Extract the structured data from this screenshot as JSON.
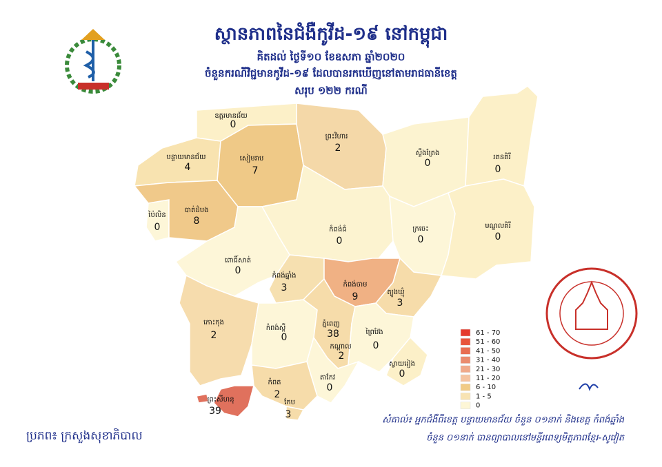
{
  "header": {
    "title": "ស្ថានភាពនៃជំងឺកូវីដ-១៩ នៅកម្ពុជា",
    "date": "គិតដល់ ថ្ងៃទី១០ ខែឧសភា ឆ្នាំ២០២០",
    "subtitle": "ចំនួនករណីវិជ្ជមានកូវីដ-១៩ ដែលបានរកឃើញនៅតាមរាជធានីខេត្ត",
    "total": "សរុប ១២២ ករណី"
  },
  "provinces": [
    {
      "name": "ឧត្តរមានជ័យ",
      "value": 0,
      "color": "#fcf0c8"
    },
    {
      "name": "បន្ទាយមានជ័យ",
      "value": 4,
      "color": "#f8e3b0"
    },
    {
      "name": "សៀមរាប",
      "value": 7,
      "color": "#efc987"
    },
    {
      "name": "ព្រះវិហារ",
      "value": 2,
      "color": "#f4d8a8"
    },
    {
      "name": "ស្ទឹងត្រែង",
      "value": 0,
      "color": "#fcf3d0"
    },
    {
      "name": "រតនគិរី",
      "value": 0,
      "color": "#fcf0c8"
    },
    {
      "name": "ប៉ៃលិន",
      "value": 0,
      "color": "#fdf6d8"
    },
    {
      "name": "បាត់ដំបង",
      "value": 8,
      "color": "#f0c98a"
    },
    {
      "name": "កំពង់ធំ",
      "value": 0,
      "color": "#fcf3d0"
    },
    {
      "name": "ក្រចេះ",
      "value": 0,
      "color": "#fdf6d8"
    },
    {
      "name": "មណ្ឌលគិរី",
      "value": 0,
      "color": "#fcf0c8"
    },
    {
      "name": "ពោធិ៍សាត់",
      "value": 0,
      "color": "#fdf6d8"
    },
    {
      "name": "កំពង់ឆ្នាំង",
      "value": 3,
      "color": "#f6e0b0"
    },
    {
      "name": "កំពង់ចាម",
      "value": 9,
      "color": "#f0b184"
    },
    {
      "name": "ត្បូងឃ្មុំ",
      "value": 3,
      "color": "#f6dcaa"
    },
    {
      "name": "កោះកុង",
      "value": 2,
      "color": "#f6dcad"
    },
    {
      "name": "កំពង់ស្ពឺ",
      "value": 0,
      "color": "#fdf6d8"
    },
    {
      "name": "ភ្នំពេញ",
      "value": 38,
      "color": "#e2725e"
    },
    {
      "name": "កណ្ដាល",
      "value": 2,
      "color": "#f6dcaa"
    },
    {
      "name": "ព្រៃវែង",
      "value": 0,
      "color": "#fdf6d8"
    },
    {
      "name": "ស្វាយរៀង",
      "value": 0,
      "color": "#fcf0c8"
    },
    {
      "name": "តាកែវ",
      "value": 0,
      "color": "#fdf6d8"
    },
    {
      "name": "កំពត",
      "value": 2,
      "color": "#f6dcaa"
    },
    {
      "name": "ព្រះសីហនុ",
      "value": 39,
      "color": "#e0715d"
    },
    {
      "name": "កែប",
      "value": 3,
      "color": "#f6dcaa"
    }
  ],
  "legend": [
    {
      "label": "61 - 70",
      "color": "#e53a2c"
    },
    {
      "label": "51 - 60",
      "color": "#e8553c"
    },
    {
      "label": "41 - 50",
      "color": "#e86e52"
    },
    {
      "label": "31 - 40",
      "color": "#ea8b6e"
    },
    {
      "label": "21 - 30",
      "color": "#f0a98a"
    },
    {
      "label": "11 - 20",
      "color": "#f5c3a0"
    },
    {
      "label": "6 - 10",
      "color": "#f1cb86"
    },
    {
      "label": "1 - 5",
      "color": "#f8e3b3"
    },
    {
      "label": "0",
      "color": "#fdf6d6"
    }
  ],
  "footer": {
    "source": "ប្រភព៖ ក្រសួងសុខាភិបាល",
    "note": [
      "សំគាល់៖ អ្នកជំងឺពីខេត្ត បន្ទាយមានជ័យ ចំនួន ០១នាក់ និងខេត្ត កំពង់ឆ្នាំង",
      "ចំនួន ០១នាក់ បានព្យាបាលនៅមន្ទីរពេទ្យមិត្តភាពខ្មែរ-សូវៀត"
    ]
  }
}
